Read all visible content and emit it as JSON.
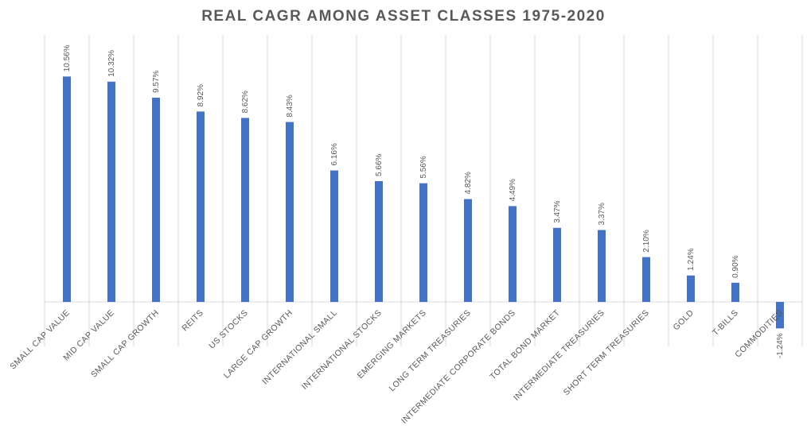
{
  "chart_data": {
    "type": "bar",
    "title": "REAL CAGR AMONG ASSET CLASSES 1975-2020",
    "categories": [
      "SMALL CAP VALUE",
      "MID CAP VALUE",
      "SMALL CAP GROWTH",
      "REITS",
      "US STOCKS",
      "LARGE CAP GROWTH",
      "INTERNATIONAL SMALL",
      "INTERNATIONAL STOCKS",
      "EMERGING MARKETS",
      "LONG TERM TREASURIES",
      "INTERMEDIATE CORPORATE BONDS",
      "TOTAL BOND MARKET",
      "INTERMEDIATE TREASURIES",
      "SHORT TERM TREASURIES",
      "GOLD",
      "T-BILLS",
      "COMMODITIES"
    ],
    "values": [
      10.56,
      10.32,
      9.57,
      8.92,
      8.62,
      8.43,
      6.16,
      5.66,
      5.56,
      4.82,
      4.49,
      3.47,
      3.37,
      2.1,
      1.24,
      0.9,
      -1.24
    ],
    "data_labels": [
      "10.56%",
      "10.32%",
      "9.57%",
      "8.92%",
      "8.62%",
      "8.43%",
      "6.16%",
      "5.66%",
      "5.56%",
      "4.82%",
      "4.49%",
      "3.47%",
      "3.37%",
      "2.10%",
      "1.24%",
      "0.90%",
      "-1.24%"
    ],
    "ylim": [
      -2,
      12
    ],
    "xlabel": "",
    "ylabel": "",
    "gridlines": "vertical",
    "bar_color": "#4472C4",
    "grid_color": "#D9D9D9",
    "text_color": "#595959"
  }
}
